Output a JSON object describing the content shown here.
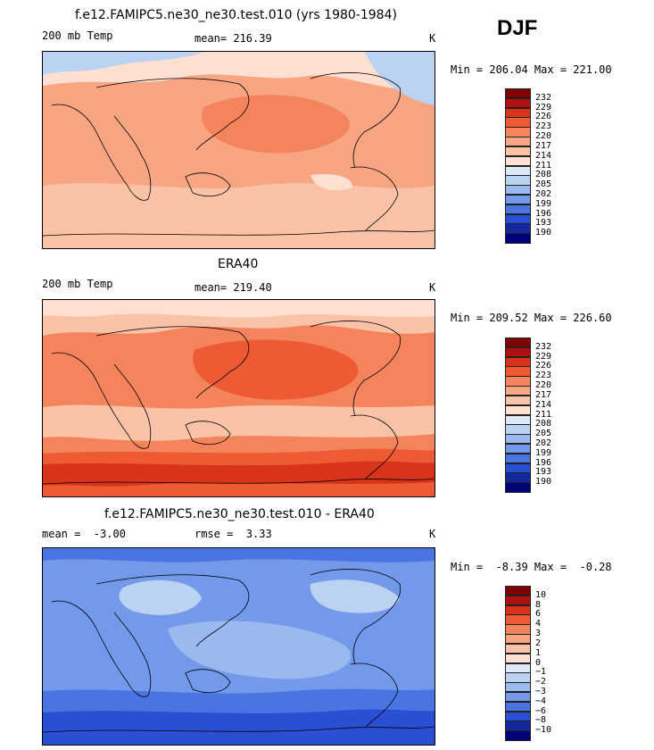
{
  "season": "DJF",
  "panels": [
    {
      "title": "f.e12.FAMIPC5.ne30_ne30.test.010 (yrs 1980-1984)",
      "left_label": "200 mb Temp",
      "center_label": "mean= 216.39",
      "units": "K",
      "minmax": "Min = 206.04 Max = 221.00",
      "levels": [
        "232",
        "229",
        "226",
        "223",
        "220",
        "217",
        "214",
        "211",
        "208",
        "205",
        "202",
        "199",
        "196",
        "193",
        "190"
      ],
      "palette": [
        "#7f0000",
        "#b01010",
        "#d8341a",
        "#ee5a33",
        "#f4845c",
        "#f7a582",
        "#fac3a8",
        "#fde0d2",
        "#dde9f7",
        "#bcd2f2",
        "#9ab9ee",
        "#7399ea",
        "#4a74e2",
        "#2a4fd2",
        "#13289c",
        "#00007a"
      ],
      "field_colors": {
        "dominant": "#f7a582",
        "warm": "#f4845c",
        "mild": "#fac3a8",
        "cool": "#fde0d2",
        "cold": "#bcd2f2"
      }
    },
    {
      "title": "ERA40",
      "left_label": "200 mb Temp",
      "center_label": "mean= 219.40",
      "units": "K",
      "minmax": "Min = 209.52 Max = 226.60",
      "levels": [
        "232",
        "229",
        "226",
        "223",
        "220",
        "217",
        "214",
        "211",
        "208",
        "205",
        "202",
        "199",
        "196",
        "193",
        "190"
      ],
      "palette": [
        "#7f0000",
        "#b01010",
        "#d8341a",
        "#ee5a33",
        "#f4845c",
        "#f7a582",
        "#fac3a8",
        "#fde0d2",
        "#dde9f7",
        "#bcd2f2",
        "#9ab9ee",
        "#7399ea",
        "#4a74e2",
        "#2a4fd2",
        "#13289c",
        "#00007a"
      ],
      "field_colors": {
        "dominant": "#f4845c",
        "warm": "#ee5a33",
        "hot": "#d8341a",
        "mild": "#fac3a8",
        "cool": "#fde0d2",
        "cold": "#bcd2f2"
      }
    },
    {
      "title": "f.e12.FAMIPC5.ne30_ne30.test.010 - ERA40",
      "left_label": "mean =  -3.00",
      "center_label": "rmse =  3.33",
      "units": "K",
      "minmax": "Min =  -8.39 Max =  -0.28",
      "levels": [
        "10",
        "8",
        "6",
        "4",
        "3",
        "2",
        "1",
        "0",
        "−1",
        "−2",
        "−3",
        "−4",
        "−6",
        "−8",
        "−10"
      ],
      "palette": [
        "#7f0000",
        "#b01010",
        "#d8341a",
        "#ee5a33",
        "#f4845c",
        "#f7a582",
        "#fac3a8",
        "#fde0d2",
        "#dde9f7",
        "#bcd2f2",
        "#9ab9ee",
        "#7399ea",
        "#4a74e2",
        "#2a4fd2",
        "#13289c",
        "#00007a"
      ],
      "field_colors": {
        "dominant": "#7399ea",
        "light": "#9ab9ee",
        "lighter": "#bcd2f2",
        "dark": "#4a74e2",
        "darker": "#2a4fd2"
      }
    }
  ]
}
